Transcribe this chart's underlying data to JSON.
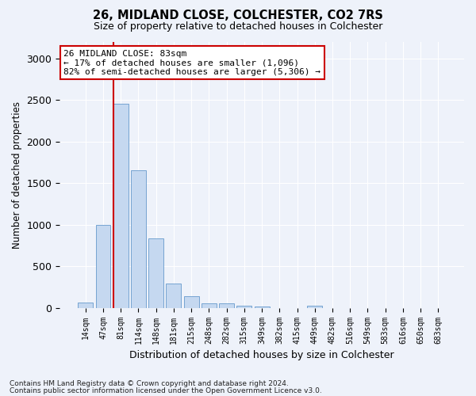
{
  "title1": "26, MIDLAND CLOSE, COLCHESTER, CO2 7RS",
  "title2": "Size of property relative to detached houses in Colchester",
  "xlabel": "Distribution of detached houses by size in Colchester",
  "ylabel": "Number of detached properties",
  "footer1": "Contains HM Land Registry data © Crown copyright and database right 2024.",
  "footer2": "Contains public sector information licensed under the Open Government Licence v3.0.",
  "property_label": "26 MIDLAND CLOSE: 83sqm",
  "annotation_line1": "← 17% of detached houses are smaller (1,096)",
  "annotation_line2": "82% of semi-detached houses are larger (5,306) →",
  "bar_categories": [
    "14sqm",
    "47sqm",
    "81sqm",
    "114sqm",
    "148sqm",
    "181sqm",
    "215sqm",
    "248sqm",
    "282sqm",
    "315sqm",
    "349sqm",
    "382sqm",
    "415sqm",
    "449sqm",
    "482sqm",
    "516sqm",
    "549sqm",
    "583sqm",
    "616sqm",
    "650sqm",
    "683sqm"
  ],
  "bar_values": [
    60,
    1000,
    2450,
    1650,
    830,
    290,
    140,
    55,
    55,
    30,
    20,
    0,
    0,
    30,
    0,
    0,
    0,
    0,
    0,
    0,
    0
  ],
  "bar_color": "#c5d8f0",
  "bar_edgecolor": "#6699cc",
  "vline_color": "#cc0000",
  "vline_bar_index": 2,
  "annotation_box_edgecolor": "#cc0000",
  "annotation_box_facecolor": "#ffffff",
  "background_color": "#eef2fa",
  "grid_color": "#ffffff",
  "ylim": [
    0,
    3200
  ],
  "yticks": [
    0,
    500,
    1000,
    1500,
    2000,
    2500,
    3000
  ]
}
